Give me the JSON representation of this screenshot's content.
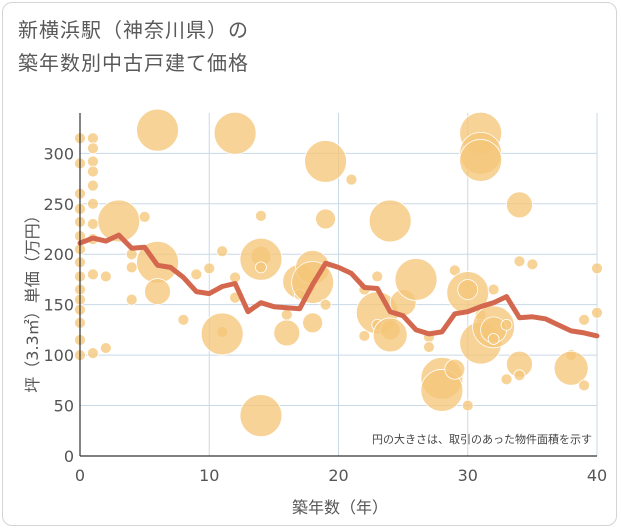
{
  "title_line1": "新横浜駅（神奈川県）の",
  "title_line2": "築年数別中古戸建て価格",
  "chart_data": {
    "type": "scatter",
    "title": "新横浜駅（神奈川県）の築年数別中古戸建て価格",
    "xlabel": "築年数（年）",
    "ylabel": "坪（3.3㎡）単価（万円）",
    "xlim": [
      0,
      40
    ],
    "ylim": [
      0,
      340
    ],
    "xticks": [
      0,
      10,
      20,
      30,
      40
    ],
    "yticks": [
      0,
      50,
      100,
      150,
      200,
      250,
      300
    ],
    "grid": true,
    "annotation": "円の大きさは、取引のあった物件面積を示す",
    "bubble_color": "#f5c67a",
    "line_color": "#d4684f",
    "bubbles": [
      {
        "x": 0,
        "y": 315,
        "s": 1
      },
      {
        "x": 0,
        "y": 290,
        "s": 1
      },
      {
        "x": 0,
        "y": 260,
        "s": 1
      },
      {
        "x": 0,
        "y": 245,
        "s": 1
      },
      {
        "x": 0,
        "y": 232,
        "s": 1
      },
      {
        "x": 0,
        "y": 218,
        "s": 1
      },
      {
        "x": 0,
        "y": 205,
        "s": 1
      },
      {
        "x": 0,
        "y": 192,
        "s": 1
      },
      {
        "x": 0,
        "y": 178,
        "s": 1
      },
      {
        "x": 0,
        "y": 165,
        "s": 1
      },
      {
        "x": 0,
        "y": 155,
        "s": 1
      },
      {
        "x": 0,
        "y": 145,
        "s": 1
      },
      {
        "x": 0,
        "y": 132,
        "s": 1
      },
      {
        "x": 0,
        "y": 115,
        "s": 1
      },
      {
        "x": 0,
        "y": 100,
        "s": 1
      },
      {
        "x": 1,
        "y": 315,
        "s": 1
      },
      {
        "x": 1,
        "y": 305,
        "s": 1
      },
      {
        "x": 1,
        "y": 292,
        "s": 1
      },
      {
        "x": 1,
        "y": 282,
        "s": 1
      },
      {
        "x": 1,
        "y": 268,
        "s": 1
      },
      {
        "x": 1,
        "y": 250,
        "s": 1
      },
      {
        "x": 1,
        "y": 230,
        "s": 1
      },
      {
        "x": 1,
        "y": 215,
        "s": 1
      },
      {
        "x": 1,
        "y": 180,
        "s": 1
      },
      {
        "x": 1,
        "y": 102,
        "s": 1
      },
      {
        "x": 2,
        "y": 178,
        "s": 1
      },
      {
        "x": 2,
        "y": 107,
        "s": 1
      },
      {
        "x": 3,
        "y": 233,
        "s": 5
      },
      {
        "x": 4,
        "y": 200,
        "s": 1
      },
      {
        "x": 4,
        "y": 187,
        "s": 1
      },
      {
        "x": 4,
        "y": 155,
        "s": 1
      },
      {
        "x": 5,
        "y": 237,
        "s": 1
      },
      {
        "x": 6,
        "y": 323,
        "s": 5
      },
      {
        "x": 6,
        "y": 192,
        "s": 5
      },
      {
        "x": 6,
        "y": 163,
        "s": 3
      },
      {
        "x": 8,
        "y": 135,
        "s": 1
      },
      {
        "x": 9,
        "y": 180,
        "s": 1
      },
      {
        "x": 10,
        "y": 186,
        "s": 1
      },
      {
        "x": 11,
        "y": 203,
        "s": 1
      },
      {
        "x": 11,
        "y": 123,
        "s": 1
      },
      {
        "x": 11,
        "y": 121,
        "s": 5
      },
      {
        "x": 12,
        "y": 320,
        "s": 5
      },
      {
        "x": 12,
        "y": 177,
        "s": 1
      },
      {
        "x": 12,
        "y": 157,
        "s": 1
      },
      {
        "x": 14,
        "y": 238,
        "s": 1
      },
      {
        "x": 14,
        "y": 198,
        "s": 2
      },
      {
        "x": 14,
        "y": 195,
        "s": 5
      },
      {
        "x": 14,
        "y": 187,
        "s": 1
      },
      {
        "x": 14,
        "y": 40,
        "s": 5
      },
      {
        "x": 16,
        "y": 140,
        "s": 1
      },
      {
        "x": 16,
        "y": 122,
        "s": 3
      },
      {
        "x": 17,
        "y": 173,
        "s": 4
      },
      {
        "x": 17,
        "y": 160,
        "s": 1
      },
      {
        "x": 18,
        "y": 187,
        "s": 4
      },
      {
        "x": 18,
        "y": 172,
        "s": 5
      },
      {
        "x": 18,
        "y": 132,
        "s": 2
      },
      {
        "x": 19,
        "y": 292,
        "s": 5
      },
      {
        "x": 19,
        "y": 235,
        "s": 2
      },
      {
        "x": 19,
        "y": 150,
        "s": 1
      },
      {
        "x": 21,
        "y": 274,
        "s": 1
      },
      {
        "x": 22,
        "y": 119,
        "s": 1
      },
      {
        "x": 22,
        "y": 165,
        "s": 1
      },
      {
        "x": 23,
        "y": 178,
        "s": 1
      },
      {
        "x": 23,
        "y": 142,
        "s": 5
      },
      {
        "x": 23,
        "y": 130,
        "s": 1
      },
      {
        "x": 24,
        "y": 233,
        "s": 5
      },
      {
        "x": 24,
        "y": 125,
        "s": 2
      },
      {
        "x": 24,
        "y": 120,
        "s": 4
      },
      {
        "x": 25,
        "y": 152,
        "s": 3
      },
      {
        "x": 26,
        "y": 175,
        "s": 5
      },
      {
        "x": 27,
        "y": 118,
        "s": 1
      },
      {
        "x": 27,
        "y": 108,
        "s": 1
      },
      {
        "x": 28,
        "y": 77,
        "s": 5
      },
      {
        "x": 28,
        "y": 65,
        "s": 5
      },
      {
        "x": 29,
        "y": 86,
        "s": 2
      },
      {
        "x": 29,
        "y": 184,
        "s": 1
      },
      {
        "x": 30,
        "y": 162,
        "s": 5
      },
      {
        "x": 30,
        "y": 165,
        "s": 2
      },
      {
        "x": 30,
        "y": 50,
        "s": 1
      },
      {
        "x": 31,
        "y": 320,
        "s": 5
      },
      {
        "x": 31,
        "y": 300,
        "s": 5
      },
      {
        "x": 31,
        "y": 293,
        "s": 5
      },
      {
        "x": 31,
        "y": 140,
        "s": 1
      },
      {
        "x": 31,
        "y": 130,
        "s": 1
      },
      {
        "x": 31,
        "y": 112,
        "s": 5
      },
      {
        "x": 32,
        "y": 128,
        "s": 5
      },
      {
        "x": 32,
        "y": 125,
        "s": 3
      },
      {
        "x": 32,
        "y": 116,
        "s": 1
      },
      {
        "x": 32,
        "y": 165,
        "s": 1
      },
      {
        "x": 33,
        "y": 130,
        "s": 1
      },
      {
        "x": 33,
        "y": 76,
        "s": 1
      },
      {
        "x": 34,
        "y": 249,
        "s": 3
      },
      {
        "x": 34,
        "y": 193,
        "s": 1
      },
      {
        "x": 34,
        "y": 91,
        "s": 3
      },
      {
        "x": 34,
        "y": 80,
        "s": 1
      },
      {
        "x": 35,
        "y": 190,
        "s": 1
      },
      {
        "x": 38,
        "y": 100,
        "s": 1
      },
      {
        "x": 38,
        "y": 87,
        "s": 4
      },
      {
        "x": 39,
        "y": 135,
        "s": 1
      },
      {
        "x": 39,
        "y": 70,
        "s": 1
      },
      {
        "x": 40,
        "y": 186,
        "s": 1
      },
      {
        "x": 40,
        "y": 142,
        "s": 1
      }
    ],
    "line": {
      "x": [
        0,
        1,
        2,
        3,
        4,
        5,
        6,
        7,
        8,
        9,
        10,
        11,
        12,
        13,
        14,
        15,
        16,
        17,
        18,
        19,
        20,
        21,
        22,
        23,
        24,
        25,
        26,
        27,
        28,
        29,
        30,
        31,
        32,
        33,
        34,
        35,
        36,
        37,
        38,
        39,
        40
      ],
      "y": [
        211,
        216,
        213,
        219,
        206,
        207,
        189,
        187,
        177,
        163,
        161,
        168,
        171,
        143,
        152,
        148,
        147,
        146,
        170,
        191,
        187,
        181,
        167,
        166,
        143,
        139,
        125,
        121,
        123,
        141,
        143,
        148,
        152,
        158,
        137,
        138,
        136,
        130,
        124,
        122,
        119
      ]
    }
  }
}
